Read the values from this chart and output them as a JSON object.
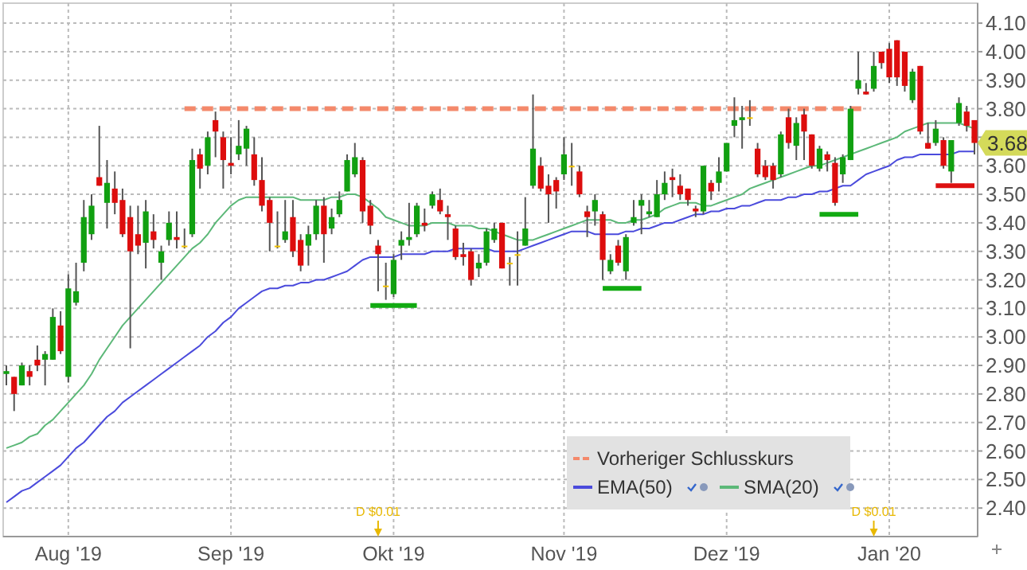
{
  "chart_data": {
    "type": "candlestick",
    "categories": [
      null,
      null,
      null,
      null,
      null,
      null,
      null,
      null,
      "Aug '19",
      null,
      null,
      null,
      null,
      null,
      null,
      null,
      null,
      null,
      null,
      null,
      null,
      null,
      null,
      null,
      null,
      null,
      null,
      null,
      null,
      "Sep '19",
      null,
      null,
      null,
      null,
      null,
      null,
      null,
      null,
      null,
      null,
      null,
      null,
      null,
      null,
      null,
      null,
      null,
      null,
      null,
      null,
      "Okt '19",
      null,
      null,
      null,
      null,
      null,
      null,
      null,
      null,
      null,
      null,
      null,
      null,
      null,
      null,
      null,
      null,
      null,
      null,
      null,
      null,
      null,
      "Nov '19",
      null,
      null,
      null,
      null,
      null,
      null,
      null,
      null,
      null,
      null,
      null,
      null,
      null,
      null,
      null,
      null,
      null,
      null,
      null,
      null,
      "Dez '19",
      null,
      null,
      null,
      null,
      null,
      null,
      null,
      null,
      null,
      null,
      null,
      null,
      null,
      null,
      null,
      null,
      null,
      null,
      null,
      null,
      "Jan '20",
      null,
      null,
      null,
      null,
      null,
      null,
      null,
      null,
      null,
      null,
      null
    ],
    "ohlc": [
      [
        2.87,
        2.9,
        2.83,
        2.88
      ],
      [
        2.86,
        2.86,
        2.74,
        2.8
      ],
      [
        2.83,
        2.91,
        2.83,
        2.9
      ],
      [
        2.88,
        2.9,
        2.83,
        2.86
      ],
      [
        2.92,
        2.97,
        2.88,
        2.9
      ],
      [
        2.92,
        2.95,
        2.83,
        2.94
      ],
      [
        2.92,
        3.1,
        2.92,
        3.07
      ],
      [
        3.04,
        3.09,
        2.94,
        2.95
      ],
      [
        2.86,
        3.22,
        2.84,
        3.17
      ],
      [
        3.12,
        3.26,
        3.11,
        3.16
      ],
      [
        3.26,
        3.48,
        3.23,
        3.42
      ],
      [
        3.36,
        3.5,
        3.34,
        3.46
      ],
      [
        3.56,
        3.74,
        3.53,
        3.53
      ],
      [
        3.47,
        3.62,
        3.38,
        3.54
      ],
      [
        3.52,
        3.58,
        3.43,
        3.47
      ],
      [
        3.48,
        3.52,
        3.35,
        3.36
      ],
      [
        3.42,
        3.46,
        2.96,
        3.3
      ],
      [
        3.36,
        3.46,
        3.29,
        3.32
      ],
      [
        3.33,
        3.48,
        3.24,
        3.44
      ],
      [
        3.37,
        3.43,
        3.31,
        3.34
      ],
      [
        3.26,
        3.32,
        3.2,
        3.3
      ],
      [
        3.34,
        3.44,
        3.32,
        3.4
      ],
      [
        3.35,
        3.44,
        3.31,
        3.34
      ],
      [
        3.32,
        3.38,
        3.31,
        3.32
      ],
      [
        3.36,
        3.66,
        3.35,
        3.62
      ],
      [
        3.64,
        3.66,
        3.52,
        3.59
      ],
      [
        3.6,
        3.72,
        3.57,
        3.7
      ],
      [
        3.76,
        3.79,
        3.63,
        3.72
      ],
      [
        3.7,
        3.72,
        3.52,
        3.62
      ],
      [
        3.61,
        3.7,
        3.57,
        3.6
      ],
      [
        3.64,
        3.76,
        3.62,
        3.67
      ],
      [
        3.66,
        3.74,
        3.6,
        3.73
      ],
      [
        3.64,
        3.7,
        3.53,
        3.55
      ],
      [
        3.55,
        3.63,
        3.44,
        3.46
      ],
      [
        3.48,
        3.49,
        3.3,
        3.4
      ],
      [
        3.32,
        3.44,
        3.31,
        3.32
      ],
      [
        3.34,
        3.48,
        3.33,
        3.37
      ],
      [
        3.42,
        3.48,
        3.28,
        3.3
      ],
      [
        3.34,
        3.36,
        3.23,
        3.25
      ],
      [
        3.32,
        3.39,
        3.25,
        3.36
      ],
      [
        3.36,
        3.48,
        3.34,
        3.46
      ],
      [
        3.46,
        3.49,
        3.26,
        3.36
      ],
      [
        3.38,
        3.45,
        3.36,
        3.42
      ],
      [
        3.43,
        3.51,
        3.42,
        3.48
      ],
      [
        3.51,
        3.64,
        3.51,
        3.62
      ],
      [
        3.57,
        3.68,
        3.56,
        3.63
      ],
      [
        3.62,
        3.63,
        3.4,
        3.44
      ],
      [
        3.46,
        3.48,
        3.36,
        3.39
      ],
      [
        3.32,
        3.34,
        3.16,
        3.29
      ],
      [
        3.18,
        3.26,
        3.13,
        3.18
      ],
      [
        3.15,
        3.29,
        3.14,
        3.27
      ],
      [
        3.32,
        3.37,
        3.27,
        3.34
      ],
      [
        3.34,
        3.47,
        3.32,
        3.35
      ],
      [
        3.36,
        3.47,
        3.35,
        3.46
      ],
      [
        3.4,
        3.45,
        3.37,
        3.39
      ],
      [
        3.46,
        3.51,
        3.45,
        3.5
      ],
      [
        3.48,
        3.52,
        3.43,
        3.44
      ],
      [
        3.43,
        3.46,
        3.34,
        3.42
      ],
      [
        3.38,
        3.39,
        3.27,
        3.28
      ],
      [
        3.29,
        3.33,
        3.25,
        3.28
      ],
      [
        3.3,
        3.31,
        3.18,
        3.2
      ],
      [
        3.24,
        3.29,
        3.21,
        3.26
      ],
      [
        3.26,
        3.38,
        3.25,
        3.37
      ],
      [
        3.34,
        3.4,
        3.33,
        3.38
      ],
      [
        3.4,
        3.4,
        3.24,
        3.24
      ],
      [
        3.26,
        3.28,
        3.18,
        3.26
      ],
      [
        3.29,
        3.37,
        3.18,
        3.29
      ],
      [
        3.32,
        3.49,
        3.32,
        3.38
      ],
      [
        3.53,
        3.85,
        3.52,
        3.66
      ],
      [
        3.6,
        3.63,
        3.51,
        3.52
      ],
      [
        3.53,
        3.57,
        3.4,
        3.5
      ],
      [
        3.55,
        3.56,
        3.45,
        3.51
      ],
      [
        3.57,
        3.7,
        3.55,
        3.64
      ],
      [
        3.6,
        3.68,
        3.53,
        3.6
      ],
      [
        3.58,
        3.6,
        3.49,
        3.5
      ],
      [
        3.44,
        3.46,
        3.35,
        3.42
      ],
      [
        3.44,
        3.5,
        3.39,
        3.48
      ],
      [
        3.43,
        3.44,
        3.2,
        3.27
      ],
      [
        3.23,
        3.29,
        3.22,
        3.27
      ],
      [
        3.32,
        3.34,
        3.25,
        3.26
      ],
      [
        3.23,
        3.36,
        3.2,
        3.35
      ],
      [
        3.4,
        3.48,
        3.39,
        3.42
      ],
      [
        3.46,
        3.5,
        3.36,
        3.48
      ],
      [
        3.43,
        3.48,
        3.42,
        3.44
      ],
      [
        3.42,
        3.55,
        3.42,
        3.5
      ],
      [
        3.5,
        3.58,
        3.48,
        3.54
      ],
      [
        3.56,
        3.59,
        3.49,
        3.55
      ],
      [
        3.53,
        3.57,
        3.48,
        3.5
      ],
      [
        3.52,
        3.52,
        3.46,
        3.48
      ],
      [
        3.45,
        3.46,
        3.42,
        3.44
      ],
      [
        3.44,
        3.6,
        3.43,
        3.6
      ],
      [
        3.54,
        3.55,
        3.48,
        3.51
      ],
      [
        3.54,
        3.63,
        3.51,
        3.58
      ],
      [
        3.58,
        3.68,
        3.58,
        3.68
      ],
      [
        3.74,
        3.84,
        3.7,
        3.76
      ],
      [
        3.76,
        3.81,
        3.66,
        3.77
      ],
      [
        3.77,
        3.83,
        3.74,
        3.77
      ],
      [
        3.66,
        3.68,
        3.56,
        3.57
      ],
      [
        3.6,
        3.62,
        3.55,
        3.56
      ],
      [
        3.6,
        3.61,
        3.52,
        3.55
      ],
      [
        3.57,
        3.72,
        3.56,
        3.71
      ],
      [
        3.77,
        3.8,
        3.66,
        3.68
      ],
      [
        3.67,
        3.77,
        3.62,
        3.75
      ],
      [
        3.78,
        3.8,
        3.62,
        3.72
      ],
      [
        3.71,
        3.71,
        3.59,
        3.6
      ],
      [
        3.59,
        3.67,
        3.58,
        3.66
      ],
      [
        3.64,
        3.65,
        3.58,
        3.62
      ],
      [
        3.61,
        3.63,
        3.46,
        3.47
      ],
      [
        3.57,
        3.64,
        3.54,
        3.63
      ],
      [
        3.62,
        3.81,
        3.62,
        3.8
      ],
      [
        3.87,
        4.0,
        3.85,
        3.9
      ],
      [
        3.86,
        3.89,
        3.85,
        3.85
      ],
      [
        3.87,
        4.0,
        3.86,
        3.95
      ],
      [
        4.0,
        4.0,
        3.94,
        3.96
      ],
      [
        4.01,
        4.03,
        3.89,
        3.91
      ],
      [
        4.04,
        4.04,
        3.88,
        3.91
      ],
      [
        4.0,
        4.0,
        3.86,
        3.88
      ],
      [
        3.83,
        3.94,
        3.82,
        3.93
      ],
      [
        3.95,
        3.95,
        3.71,
        3.72
      ],
      [
        3.68,
        3.75,
        3.66,
        3.66
      ],
      [
        3.68,
        3.76,
        3.67,
        3.73
      ],
      [
        3.69,
        3.7,
        3.59,
        3.6
      ],
      [
        3.58,
        3.69,
        3.54,
        3.69
      ],
      [
        3.75,
        3.84,
        3.74,
        3.82
      ],
      [
        3.79,
        3.81,
        3.72,
        3.74
      ],
      [
        3.76,
        3.76,
        3.64,
        3.68
      ]
    ],
    "series": [
      {
        "name": "Vorheriger Schlusskurs",
        "type": "line",
        "line_style": "dashed",
        "color": "#f4896b",
        "values": [
          null,
          null,
          null,
          null,
          null,
          null,
          null,
          null,
          null,
          null,
          null,
          null,
          null,
          null,
          null,
          null,
          null,
          null,
          null,
          null,
          null,
          null,
          null,
          3.8,
          3.8,
          3.8,
          3.8,
          3.8,
          3.8,
          3.8,
          3.8,
          3.8,
          3.8,
          3.8,
          3.8,
          3.8,
          3.8,
          3.8,
          3.8,
          3.8,
          3.8,
          3.8,
          3.8,
          3.8,
          3.8,
          3.8,
          3.8,
          3.8,
          3.8,
          3.8,
          3.8,
          3.8,
          3.8,
          3.8,
          3.8,
          3.8,
          3.8,
          3.8,
          3.8,
          3.8,
          3.8,
          3.8,
          3.8,
          3.8,
          3.8,
          3.8,
          3.8,
          3.8,
          3.8,
          3.8,
          3.8,
          3.8,
          3.8,
          3.8,
          3.8,
          3.8,
          3.8,
          3.8,
          3.8,
          3.8,
          3.8,
          3.8,
          3.8,
          3.8,
          3.8,
          3.8,
          3.8,
          3.8,
          3.8,
          3.8,
          3.8,
          3.8,
          3.8,
          3.8,
          3.8,
          3.8,
          3.8,
          3.8,
          3.8,
          3.8,
          3.8,
          3.8,
          3.8,
          3.8,
          3.8,
          3.8,
          3.8,
          3.8,
          3.8,
          3.8,
          3.8,
          3.8,
          null,
          null,
          null,
          null,
          null,
          null,
          null,
          null,
          null,
          null,
          null,
          null,
          null,
          null
        ]
      },
      {
        "name": "EMA(50)",
        "type": "line",
        "color": "#4b4bdc",
        "values": [
          2.42,
          2.44,
          2.46,
          2.47,
          2.49,
          2.51,
          2.53,
          2.55,
          2.58,
          2.61,
          2.63,
          2.66,
          2.69,
          2.72,
          2.74,
          2.77,
          2.79,
          2.81,
          2.83,
          2.85,
          2.87,
          2.89,
          2.91,
          2.93,
          2.95,
          2.97,
          3.0,
          3.02,
          3.05,
          3.07,
          3.1,
          3.12,
          3.14,
          3.16,
          3.17,
          3.17,
          3.18,
          3.18,
          3.19,
          3.19,
          3.2,
          3.2,
          3.21,
          3.22,
          3.23,
          3.25,
          3.27,
          3.28,
          3.28,
          3.28,
          3.28,
          3.29,
          3.29,
          3.29,
          3.29,
          3.3,
          3.3,
          3.3,
          3.31,
          3.31,
          3.31,
          3.31,
          3.31,
          3.3,
          3.3,
          3.3,
          3.3,
          3.31,
          3.32,
          3.33,
          3.34,
          3.35,
          3.36,
          3.37,
          3.37,
          3.37,
          3.36,
          3.36,
          3.36,
          3.36,
          3.37,
          3.37,
          3.38,
          3.38,
          3.39,
          3.4,
          3.4,
          3.41,
          3.42,
          3.43,
          3.43,
          3.44,
          3.44,
          3.45,
          3.45,
          3.46,
          3.46,
          3.47,
          3.48,
          3.48,
          3.48,
          3.49,
          3.49,
          3.5,
          3.5,
          3.51,
          3.51,
          3.52,
          3.53,
          3.53,
          3.55,
          3.57,
          3.58,
          3.59,
          3.6,
          3.62,
          3.63,
          3.63,
          3.64,
          3.64,
          3.64,
          3.64,
          3.64,
          3.65,
          3.65,
          3.65
        ]
      },
      {
        "name": "SMA(20)",
        "type": "line",
        "color": "#5cb878",
        "values": [
          2.61,
          2.62,
          2.63,
          2.65,
          2.66,
          2.69,
          2.71,
          2.74,
          2.77,
          2.8,
          2.83,
          2.87,
          2.92,
          2.96,
          3.0,
          3.04,
          3.07,
          3.1,
          3.13,
          3.16,
          3.19,
          3.22,
          3.25,
          3.28,
          3.31,
          3.33,
          3.36,
          3.4,
          3.43,
          3.46,
          3.48,
          3.49,
          3.49,
          3.49,
          3.49,
          3.49,
          3.49,
          3.49,
          3.48,
          3.48,
          3.48,
          3.48,
          3.49,
          3.49,
          3.5,
          3.5,
          3.49,
          3.47,
          3.45,
          3.42,
          3.41,
          3.4,
          3.39,
          3.39,
          3.39,
          3.4,
          3.4,
          3.4,
          3.39,
          3.39,
          3.39,
          3.38,
          3.38,
          3.37,
          3.36,
          3.35,
          3.34,
          3.34,
          3.34,
          3.35,
          3.36,
          3.37,
          3.38,
          3.39,
          3.4,
          3.41,
          3.41,
          3.41,
          3.41,
          3.4,
          3.4,
          3.41,
          3.41,
          3.42,
          3.43,
          3.45,
          3.46,
          3.47,
          3.47,
          3.47,
          3.46,
          3.46,
          3.47,
          3.48,
          3.49,
          3.5,
          3.52,
          3.53,
          3.54,
          3.55,
          3.56,
          3.57,
          3.58,
          3.59,
          3.6,
          3.6,
          3.61,
          3.62,
          3.63,
          3.64,
          3.65,
          3.66,
          3.67,
          3.68,
          3.69,
          3.7,
          3.72,
          3.73,
          3.74,
          3.75,
          3.75,
          3.75,
          3.75,
          3.75,
          3.74,
          3.73
        ]
      },
      {
        "type": "line",
        "color": "#11aa11",
        "values": [
          null,
          null,
          null,
          null,
          null,
          null,
          null,
          null,
          null,
          null,
          null,
          null,
          null,
          null,
          null,
          null,
          null,
          null,
          null,
          null,
          null,
          null,
          null,
          null,
          null,
          null,
          null,
          null,
          null,
          null,
          null,
          null,
          null,
          null,
          null,
          null,
          null,
          null,
          null,
          null,
          null,
          null,
          null,
          null,
          null,
          null,
          null,
          3.11,
          3.11,
          3.11,
          3.11,
          3.11,
          3.11,
          3.11,
          null,
          null,
          null,
          null,
          null,
          null,
          null,
          null,
          null,
          null,
          null,
          null,
          null,
          null,
          null,
          null,
          null,
          null,
          null,
          null,
          null,
          null,
          null,
          null,
          null,
          null,
          null,
          null,
          null,
          null,
          null,
          null,
          null,
          null,
          null,
          null,
          null,
          null,
          null,
          null,
          null,
          null,
          null,
          null,
          null,
          null,
          null,
          null,
          null,
          null,
          null,
          null,
          null,
          null,
          null,
          null,
          null,
          null,
          null,
          null,
          null,
          null,
          null,
          null,
          null,
          null,
          null,
          null,
          null,
          null,
          null,
          null
        ]
      },
      {
        "type": "line",
        "color": "#11aa11",
        "values": [
          null,
          null,
          null,
          null,
          null,
          null,
          null,
          null,
          null,
          null,
          null,
          null,
          null,
          null,
          null,
          null,
          null,
          null,
          null,
          null,
          null,
          null,
          null,
          null,
          null,
          null,
          null,
          null,
          null,
          null,
          null,
          null,
          null,
          null,
          null,
          null,
          null,
          null,
          null,
          null,
          null,
          null,
          null,
          null,
          null,
          null,
          null,
          null,
          null,
          null,
          null,
          null,
          null,
          null,
          null,
          null,
          null,
          null,
          null,
          null,
          null,
          null,
          null,
          null,
          null,
          null,
          null,
          null,
          null,
          null,
          null,
          null,
          null,
          null,
          null,
          null,
          null,
          3.17,
          3.17,
          3.17,
          3.17,
          3.17,
          3.17,
          null,
          null,
          null,
          null,
          null,
          null,
          null,
          null,
          null,
          null,
          null,
          null,
          null,
          null,
          null,
          null,
          null,
          null,
          null,
          null,
          null,
          null,
          null,
          null,
          null,
          null,
          null,
          null,
          null,
          null,
          null,
          null,
          null,
          null,
          null,
          null,
          null,
          null,
          null,
          null,
          null,
          null,
          null
        ]
      },
      {
        "type": "line",
        "color": "#11aa11",
        "values": [
          null,
          null,
          null,
          null,
          null,
          null,
          null,
          null,
          null,
          null,
          null,
          null,
          null,
          null,
          null,
          null,
          null,
          null,
          null,
          null,
          null,
          null,
          null,
          null,
          null,
          null,
          null,
          null,
          null,
          null,
          null,
          null,
          null,
          null,
          null,
          null,
          null,
          null,
          null,
          null,
          null,
          null,
          null,
          null,
          null,
          null,
          null,
          null,
          null,
          null,
          null,
          null,
          null,
          null,
          null,
          null,
          null,
          null,
          null,
          null,
          null,
          null,
          null,
          null,
          null,
          null,
          null,
          null,
          null,
          null,
          null,
          null,
          null,
          null,
          null,
          null,
          null,
          null,
          null,
          null,
          null,
          null,
          null,
          null,
          null,
          null,
          null,
          null,
          null,
          null,
          null,
          null,
          null,
          null,
          null,
          null,
          null,
          null,
          null,
          null,
          null,
          null,
          null,
          null,
          null,
          3.43,
          3.43,
          3.43,
          3.43,
          3.43,
          3.43,
          null,
          null,
          null,
          null,
          null,
          null,
          null,
          null,
          null,
          null,
          null,
          null,
          null,
          null,
          null
        ]
      },
      {
        "type": "line",
        "color": "#dd1111",
        "values": [
          null,
          null,
          null,
          null,
          null,
          null,
          null,
          null,
          null,
          null,
          null,
          null,
          null,
          null,
          null,
          null,
          null,
          null,
          null,
          null,
          null,
          null,
          null,
          null,
          null,
          null,
          null,
          null,
          null,
          null,
          null,
          null,
          null,
          null,
          null,
          null,
          null,
          null,
          null,
          null,
          null,
          null,
          null,
          null,
          null,
          null,
          null,
          null,
          null,
          null,
          null,
          null,
          null,
          null,
          null,
          null,
          null,
          null,
          null,
          null,
          null,
          null,
          null,
          null,
          null,
          null,
          null,
          null,
          null,
          null,
          null,
          null,
          null,
          null,
          null,
          null,
          null,
          null,
          null,
          null,
          null,
          null,
          null,
          null,
          null,
          null,
          null,
          null,
          null,
          null,
          null,
          null,
          null,
          null,
          null,
          null,
          null,
          null,
          null,
          null,
          null,
          null,
          null,
          null,
          null,
          null,
          null,
          null,
          null,
          null,
          null,
          null,
          null,
          null,
          null,
          null,
          null,
          null,
          null,
          null,
          3.53,
          3.53,
          3.53,
          3.53,
          3.53,
          3.53
        ]
      }
    ],
    "ylim": [
      2.3,
      4.17
    ],
    "yticks": [
      {
        "value": 2.4,
        "label": "2.40"
      },
      {
        "value": 2.5,
        "label": "2.50"
      },
      {
        "value": 2.6,
        "label": "2.60"
      },
      {
        "value": 2.7,
        "label": "2.70"
      },
      {
        "value": 2.8,
        "label": "2.80"
      },
      {
        "value": 2.9,
        "label": "2.90"
      },
      {
        "value": 3.0,
        "label": "3.00"
      },
      {
        "value": 3.1,
        "label": "3.10"
      },
      {
        "value": 3.2,
        "label": "3.20"
      },
      {
        "value": 3.3,
        "label": "3.30"
      },
      {
        "value": 3.4,
        "label": "3.40"
      },
      {
        "value": 3.5,
        "label": "3.50"
      },
      {
        "value": 3.6,
        "label": "3.60"
      },
      {
        "value": 3.7,
        "label": null
      },
      {
        "value": 3.8,
        "label": "3.80"
      },
      {
        "value": 3.9,
        "label": "3.90"
      },
      {
        "value": 4.0,
        "label": "4.00"
      },
      {
        "value": 4.1,
        "label": "4.10"
      }
    ],
    "grid": true,
    "legend": "bottom",
    "annotations": [
      "D $0.01",
      "D $0.01",
      "3.68"
    ]
  }
}
